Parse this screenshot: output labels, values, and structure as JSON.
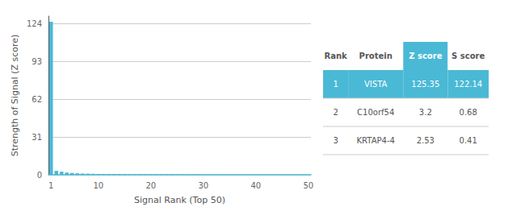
{
  "chart_data": {
    "type": "bar",
    "x": [
      1,
      2,
      3,
      4,
      5,
      6,
      7,
      8,
      9,
      10,
      11,
      12,
      13,
      14,
      15,
      16,
      17,
      18,
      19,
      20,
      21,
      22,
      23,
      24,
      25,
      26,
      27,
      28,
      29,
      30,
      31,
      32,
      33,
      34,
      35,
      36,
      37,
      38,
      39,
      40,
      41,
      42,
      43,
      44,
      45,
      46,
      47,
      48,
      49,
      50
    ],
    "values": [
      125.35,
      3.2,
      2.53,
      1.8,
      1.5,
      1.2,
      1.0,
      0.9,
      0.8,
      0.7,
      0.65,
      0.6,
      0.55,
      0.5,
      0.48,
      0.45,
      0.42,
      0.4,
      0.38,
      0.36,
      0.34,
      0.32,
      0.3,
      0.28,
      0.27,
      0.26,
      0.25,
      0.24,
      0.23,
      0.22,
      0.21,
      0.2,
      0.19,
      0.18,
      0.17,
      0.16,
      0.15,
      0.14,
      0.13,
      0.12,
      0.11,
      0.1,
      0.09,
      0.08,
      0.07,
      0.06,
      0.05,
      0.04,
      0.03,
      0.02
    ],
    "color": "#4ab9d5",
    "xlabel": "Signal Rank (Top 50)",
    "ylabel": "Strength of Signal (Z score)",
    "xlim": [
      0.5,
      50.5
    ],
    "xticks": [
      1,
      10,
      20,
      30,
      40,
      50
    ],
    "ylim": [
      0,
      130
    ],
    "yticks": [
      0,
      31,
      62,
      93,
      124
    ],
    "grid": true,
    "table": {
      "headers": [
        "Rank",
        "Protein",
        "Z score",
        "S score"
      ],
      "rows": [
        [
          "1",
          "VISTA",
          "125.35",
          "122.14"
        ],
        [
          "2",
          "C10orf54",
          "3.2",
          "0.68"
        ],
        [
          "3",
          "KRTAP4-4",
          "2.53",
          "0.41"
        ]
      ]
    }
  }
}
